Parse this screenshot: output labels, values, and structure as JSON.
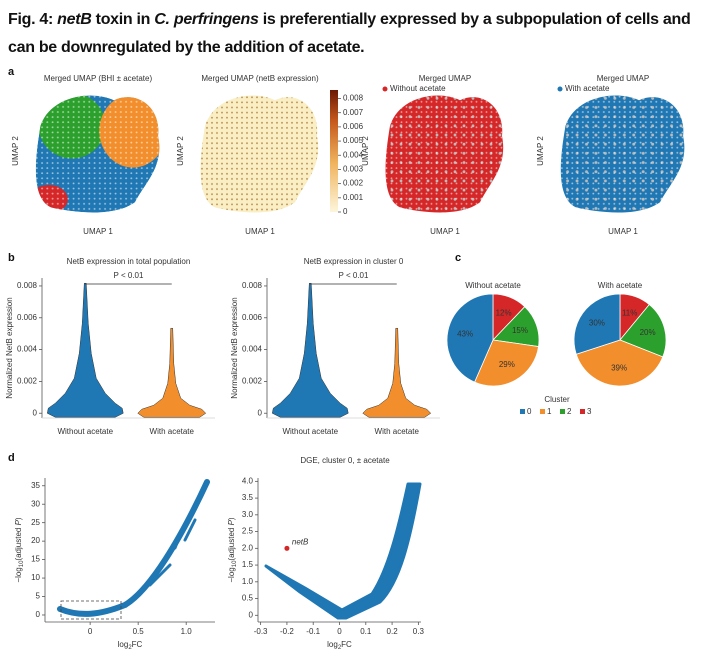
{
  "title": {
    "parts": [
      "Fig. 4: ",
      "netB",
      " toxin in ",
      "C. perfringens",
      " is preferentially expressed by a subpopulation of cells and can be downregulated by the addition of acetate."
    ]
  },
  "panel_a": {
    "letter": "a",
    "umaps": [
      {
        "title": "Merged UMAP (BHI ± acetate)",
        "xlabel": "UMAP 1",
        "ylabel": "UMAP 2"
      },
      {
        "title": "Merged UMAP (netB expression)",
        "xlabel": "UMAP 1",
        "ylabel": "UMAP 2",
        "colorbar": {
          "lim": [
            0,
            0.0086
          ],
          "ticks": [
            0,
            0.001,
            0.002,
            0.003,
            0.004,
            0.005,
            0.006,
            0.007,
            0.008
          ]
        }
      },
      {
        "title": "Merged UMAP",
        "xlabel": "UMAP 1",
        "ylabel": "UMAP 2",
        "legend": "Without acetate",
        "color": "#d62728"
      },
      {
        "title": "Merged UMAP",
        "xlabel": "UMAP 1",
        "ylabel": "UMAP 2",
        "legend": "With acetate",
        "color": "#1f77b4"
      }
    ]
  },
  "panel_b": {
    "letter": "b",
    "plots": [
      {
        "title": "NetB expression in total population",
        "ylabel": "Normalized NetB expression",
        "categories": [
          "Without acetate",
          "With acetate"
        ],
        "colors": [
          "#1f77b4",
          "#f28e2b"
        ],
        "ylim": [
          -0.0003,
          0.0085
        ],
        "yticks": [
          0,
          0.002,
          0.004,
          0.006,
          0.008
        ],
        "annotation": "P < 0.01"
      },
      {
        "title": "NetB expression in cluster 0",
        "ylabel": "Normalized NetB expression",
        "categories": [
          "Without acetate",
          "With acetate"
        ],
        "colors": [
          "#1f77b4",
          "#f28e2b"
        ],
        "ylim": [
          -0.0003,
          0.0085
        ],
        "yticks": [
          0,
          0.002,
          0.004,
          0.006,
          0.008
        ],
        "annotation": "P < 0.01"
      }
    ]
  },
  "panel_c": {
    "letter": "c",
    "legend_title": "Cluster",
    "clusters": [
      "0",
      "1",
      "2",
      "3"
    ],
    "colors": [
      "#1f77b4",
      "#f28e2b",
      "#2ca02c",
      "#d62728"
    ],
    "pies": [
      {
        "title": "Without acetate",
        "values": [
          43,
          29,
          15,
          12
        ],
        "value_labels": [
          "43%",
          "29%",
          "15%",
          "12%"
        ]
      },
      {
        "title": "With acetate",
        "values": [
          30,
          39,
          20,
          11
        ],
        "value_labels": [
          "30%",
          "39%",
          "20%",
          "11%"
        ]
      }
    ]
  },
  "panel_d": {
    "letter": "d",
    "title": "DGE, cluster 0, ± acetate",
    "plots": [
      {
        "xlim": [
          -0.47,
          1.3
        ],
        "ylim": [
          -1.9,
          37.1
        ],
        "xticks": [
          0,
          0.5,
          {
            "value": 1,
            "label": "1.0"
          }
        ],
        "yticks": [
          0,
          5,
          10,
          15,
          20,
          25,
          30,
          35
        ],
        "xlabel_parts": [
          "log",
          "2",
          "FC"
        ],
        "ylabel_parts": [
          "−log",
          "10",
          "(adjusted ",
          "P",
          ")"
        ]
      },
      {
        "xlim": [
          -0.31,
          0.31
        ],
        "ylim": [
          -0.2,
          4.1
        ],
        "xticks": [
          -0.3,
          -0.2,
          -0.1,
          0,
          0.1,
          0.2,
          0.3
        ],
        "yticks": [
          0,
          0.5,
          {
            "value": 1,
            "label": "1.0"
          },
          1.5,
          {
            "value": 2,
            "label": "2.0"
          },
          2.5,
          {
            "value": 3,
            "label": "3.0"
          },
          3.5,
          {
            "value": 4,
            "label": "4.0"
          }
        ],
        "xlabel_parts": [
          "log",
          "2",
          "FC"
        ],
        "ylabel_parts": [
          "−log",
          "10",
          "(adjusted ",
          "P",
          ")"
        ],
        "highlight": {
          "label": "netB",
          "x": -0.2,
          "y": 2.0,
          "color": "#d62728"
        }
      }
    ]
  }
}
